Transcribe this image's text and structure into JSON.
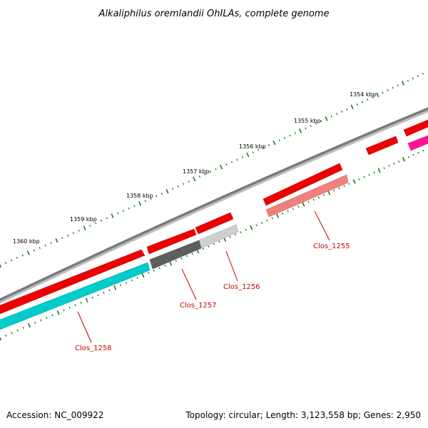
{
  "title": "Alkaliphilus oremlandii OhILAs, complete genome",
  "footer": {
    "accession": "Accession: NC_009922",
    "stats": "Topology: circular; Length: 3,123,558 bp; Genes: 2,950"
  },
  "colors": {
    "backbone": "#7a7a7a",
    "ticks": "#1a7a1a",
    "label": "#cc0000",
    "leader": "#cc0000"
  },
  "ruler": [
    {
      "label": "1354 kbp"
    },
    {
      "label": "1355 kbp"
    },
    {
      "label": "1356 kbp"
    },
    {
      "label": "1357 kbp"
    },
    {
      "label": "1358 kbp"
    },
    {
      "label": "1359 kbp"
    },
    {
      "label": "1360 kbp"
    }
  ],
  "genes": [
    {
      "label": "Clos_1255",
      "color": "#f08080",
      "strand": "+"
    },
    {
      "label": "Clos_1256",
      "color": "#cfcfcf",
      "strand": "+"
    },
    {
      "label": "Clos_1257",
      "color": "#5f5f5f",
      "strand": "+"
    },
    {
      "label": "Clos_1258",
      "color": "#00cccc",
      "strand": "+"
    }
  ],
  "unlabeled_features": [
    {
      "color": "#ff1010"
    },
    {
      "color": "#ff1493"
    }
  ]
}
